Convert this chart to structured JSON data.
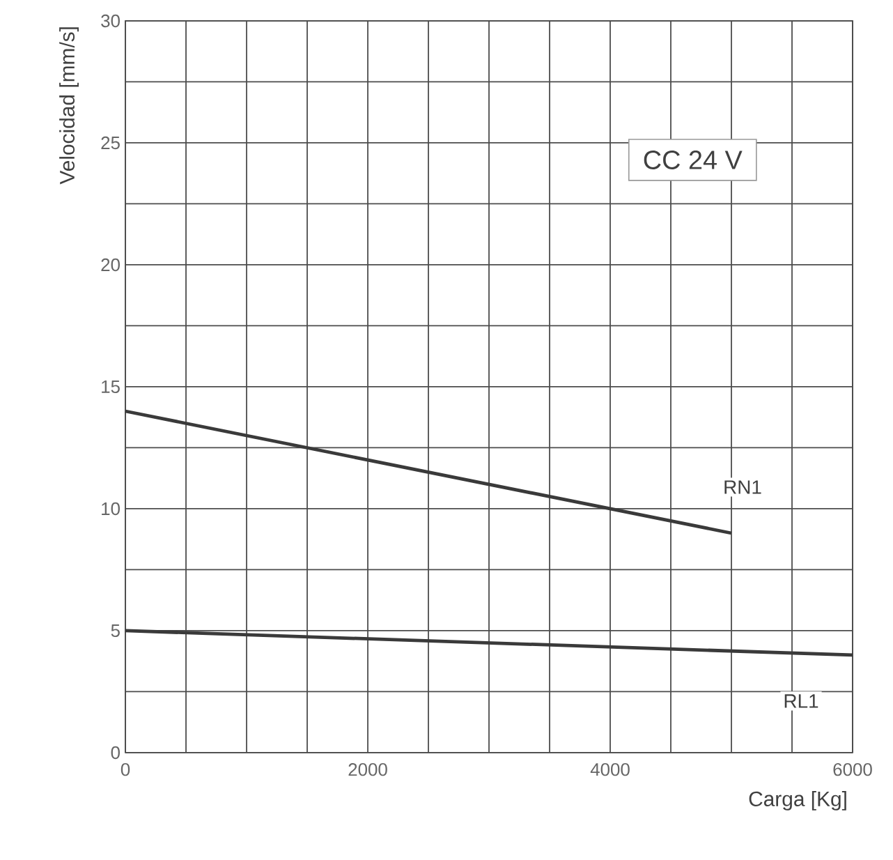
{
  "chart_data": {
    "type": "line",
    "xlabel": "Carga [Kg]",
    "ylabel": "Velocidad [mm/s]",
    "annotations": [
      "CC 24 V"
    ],
    "xlim": [
      0,
      6000
    ],
    "ylim": [
      0,
      30
    ],
    "xticks": [
      0,
      {
        "value": 500,
        "label": null
      },
      {
        "value": 1000,
        "label": null
      },
      {
        "value": 1500,
        "label": null
      },
      2000,
      {
        "value": 2500,
        "label": null
      },
      {
        "value": 3000,
        "label": null
      },
      {
        "value": 3500,
        "label": null
      },
      4000,
      {
        "value": 4500,
        "label": null
      },
      {
        "value": 5000,
        "label": null
      },
      {
        "value": 5500,
        "label": null
      },
      6000
    ],
    "yticks": [
      0,
      {
        "value": 2.5,
        "label": null
      },
      5,
      {
        "value": 7.5,
        "label": null
      },
      10,
      {
        "value": 12.5,
        "label": null
      },
      15,
      {
        "value": 17.5,
        "label": null
      },
      20,
      {
        "value": 22.5,
        "label": null
      },
      25,
      {
        "value": 27.5,
        "label": null
      },
      30
    ],
    "grid": true,
    "marker": "none",
    "line_style": "solid",
    "series": [
      {
        "name": "RN1",
        "color": "#3a3a3a",
        "x": [
          0,
          5000
        ],
        "values": [
          14,
          9
        ]
      },
      {
        "name": "RL1",
        "color": "#3a3a3a",
        "x": [
          0,
          6000
        ],
        "values": [
          5,
          4
        ]
      }
    ]
  }
}
